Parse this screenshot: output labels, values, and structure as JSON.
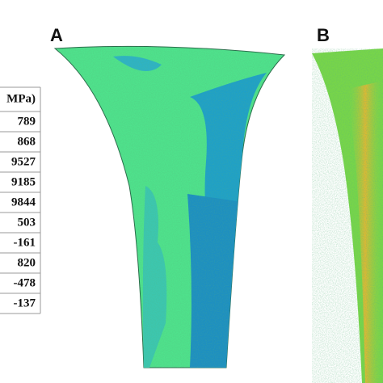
{
  "panels": {
    "a": {
      "label": "A"
    },
    "b": {
      "label": "B"
    }
  },
  "table": {
    "header": "MPa)",
    "rows": [
      "789",
      "868",
      "9527",
      "9185",
      "9844",
      "503",
      "-161",
      "820",
      "-478",
      "-137"
    ]
  }
}
